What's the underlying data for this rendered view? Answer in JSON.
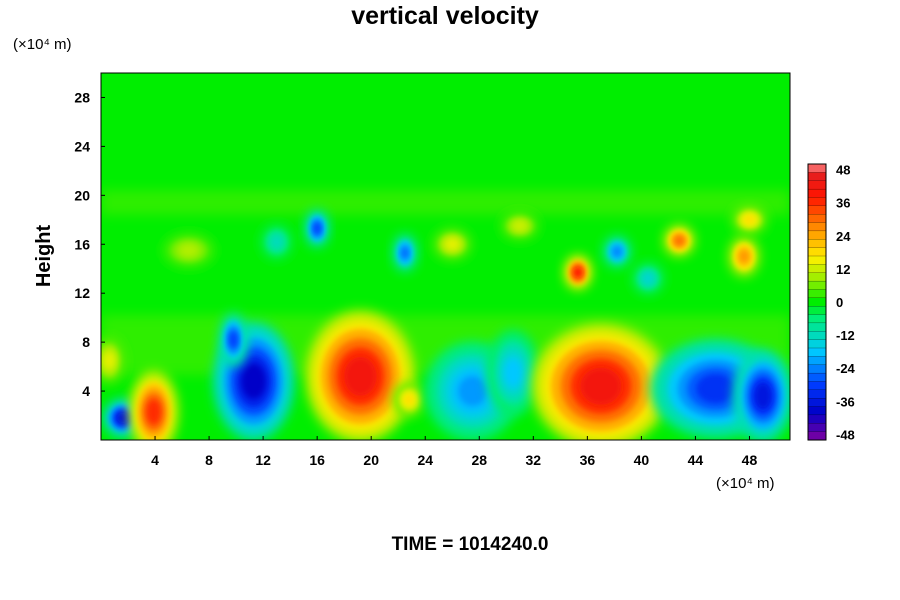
{
  "chart_data": {
    "type": "heatmap",
    "title": "vertical velocity",
    "ylabel": "Height",
    "x_unit": "(×10⁴ m)",
    "y_unit": "(×10⁴ m)",
    "xlim": [
      0,
      51
    ],
    "ylim": [
      0,
      30
    ],
    "x_ticks": [
      4,
      8,
      12,
      16,
      20,
      24,
      28,
      32,
      36,
      40,
      44,
      48
    ],
    "y_ticks": [
      4,
      8,
      12,
      16,
      20,
      24,
      28
    ],
    "colorbar": {
      "ticks": [
        48,
        36,
        24,
        12,
        0,
        -12,
        -24,
        -36,
        -48
      ],
      "range": [
        -50,
        50
      ]
    },
    "features": [
      {
        "x": 1.6,
        "y": 1.8,
        "value": -38,
        "rx": 1.0,
        "ry": 1.1
      },
      {
        "x": 3.9,
        "y": 2.3,
        "value": 36,
        "rx": 1.3,
        "ry": 2.5
      },
      {
        "x": 0.6,
        "y": 6.5,
        "value": 14,
        "rx": 0.8,
        "ry": 1.4
      },
      {
        "x": 11.3,
        "y": 4.8,
        "value": -40,
        "rx": 2.2,
        "ry": 3.6
      },
      {
        "x": 9.8,
        "y": 8.2,
        "value": -30,
        "rx": 0.7,
        "ry": 1.6
      },
      {
        "x": 19.2,
        "y": 5.2,
        "value": 42,
        "rx": 3.0,
        "ry": 4.0
      },
      {
        "x": 22.8,
        "y": 3.3,
        "value": 18,
        "rx": 0.8,
        "ry": 1.0
      },
      {
        "x": 27.5,
        "y": 4.0,
        "value": -22,
        "rx": 2.6,
        "ry": 3.0
      },
      {
        "x": 30.5,
        "y": 5.5,
        "value": -18,
        "rx": 1.4,
        "ry": 2.6
      },
      {
        "x": 37.0,
        "y": 4.4,
        "value": 42,
        "rx": 3.8,
        "ry": 3.8
      },
      {
        "x": 45.5,
        "y": 4.2,
        "value": -32,
        "rx": 3.6,
        "ry": 3.0
      },
      {
        "x": 49.0,
        "y": 3.6,
        "value": -36,
        "rx": 1.6,
        "ry": 2.8
      },
      {
        "x": 35.3,
        "y": 13.7,
        "value": 38,
        "rx": 0.7,
        "ry": 1.0
      },
      {
        "x": 42.8,
        "y": 16.3,
        "value": 30,
        "rx": 0.8,
        "ry": 0.9
      },
      {
        "x": 47.6,
        "y": 15.0,
        "value": 26,
        "rx": 0.8,
        "ry": 1.2
      },
      {
        "x": 48.0,
        "y": 18.0,
        "value": 18,
        "rx": 0.9,
        "ry": 0.8
      },
      {
        "x": 16.0,
        "y": 17.3,
        "value": -30,
        "rx": 0.6,
        "ry": 1.1
      },
      {
        "x": 22.5,
        "y": 15.3,
        "value": -26,
        "rx": 0.6,
        "ry": 1.1
      },
      {
        "x": 38.2,
        "y": 15.4,
        "value": -24,
        "rx": 0.7,
        "ry": 0.9
      },
      {
        "x": 13.0,
        "y": 16.2,
        "value": -12,
        "rx": 0.8,
        "ry": 1.0
      },
      {
        "x": 26.0,
        "y": 16.0,
        "value": 14,
        "rx": 1.0,
        "ry": 0.9
      },
      {
        "x": 6.5,
        "y": 15.5,
        "value": 10,
        "rx": 1.4,
        "ry": 1.0
      },
      {
        "x": 40.5,
        "y": 13.2,
        "value": -14,
        "rx": 0.8,
        "ry": 0.9
      },
      {
        "x": 31.0,
        "y": 17.5,
        "value": 12,
        "rx": 1.0,
        "ry": 0.8
      }
    ]
  },
  "footer": {
    "time_label": "TIME = 1014240.0"
  }
}
